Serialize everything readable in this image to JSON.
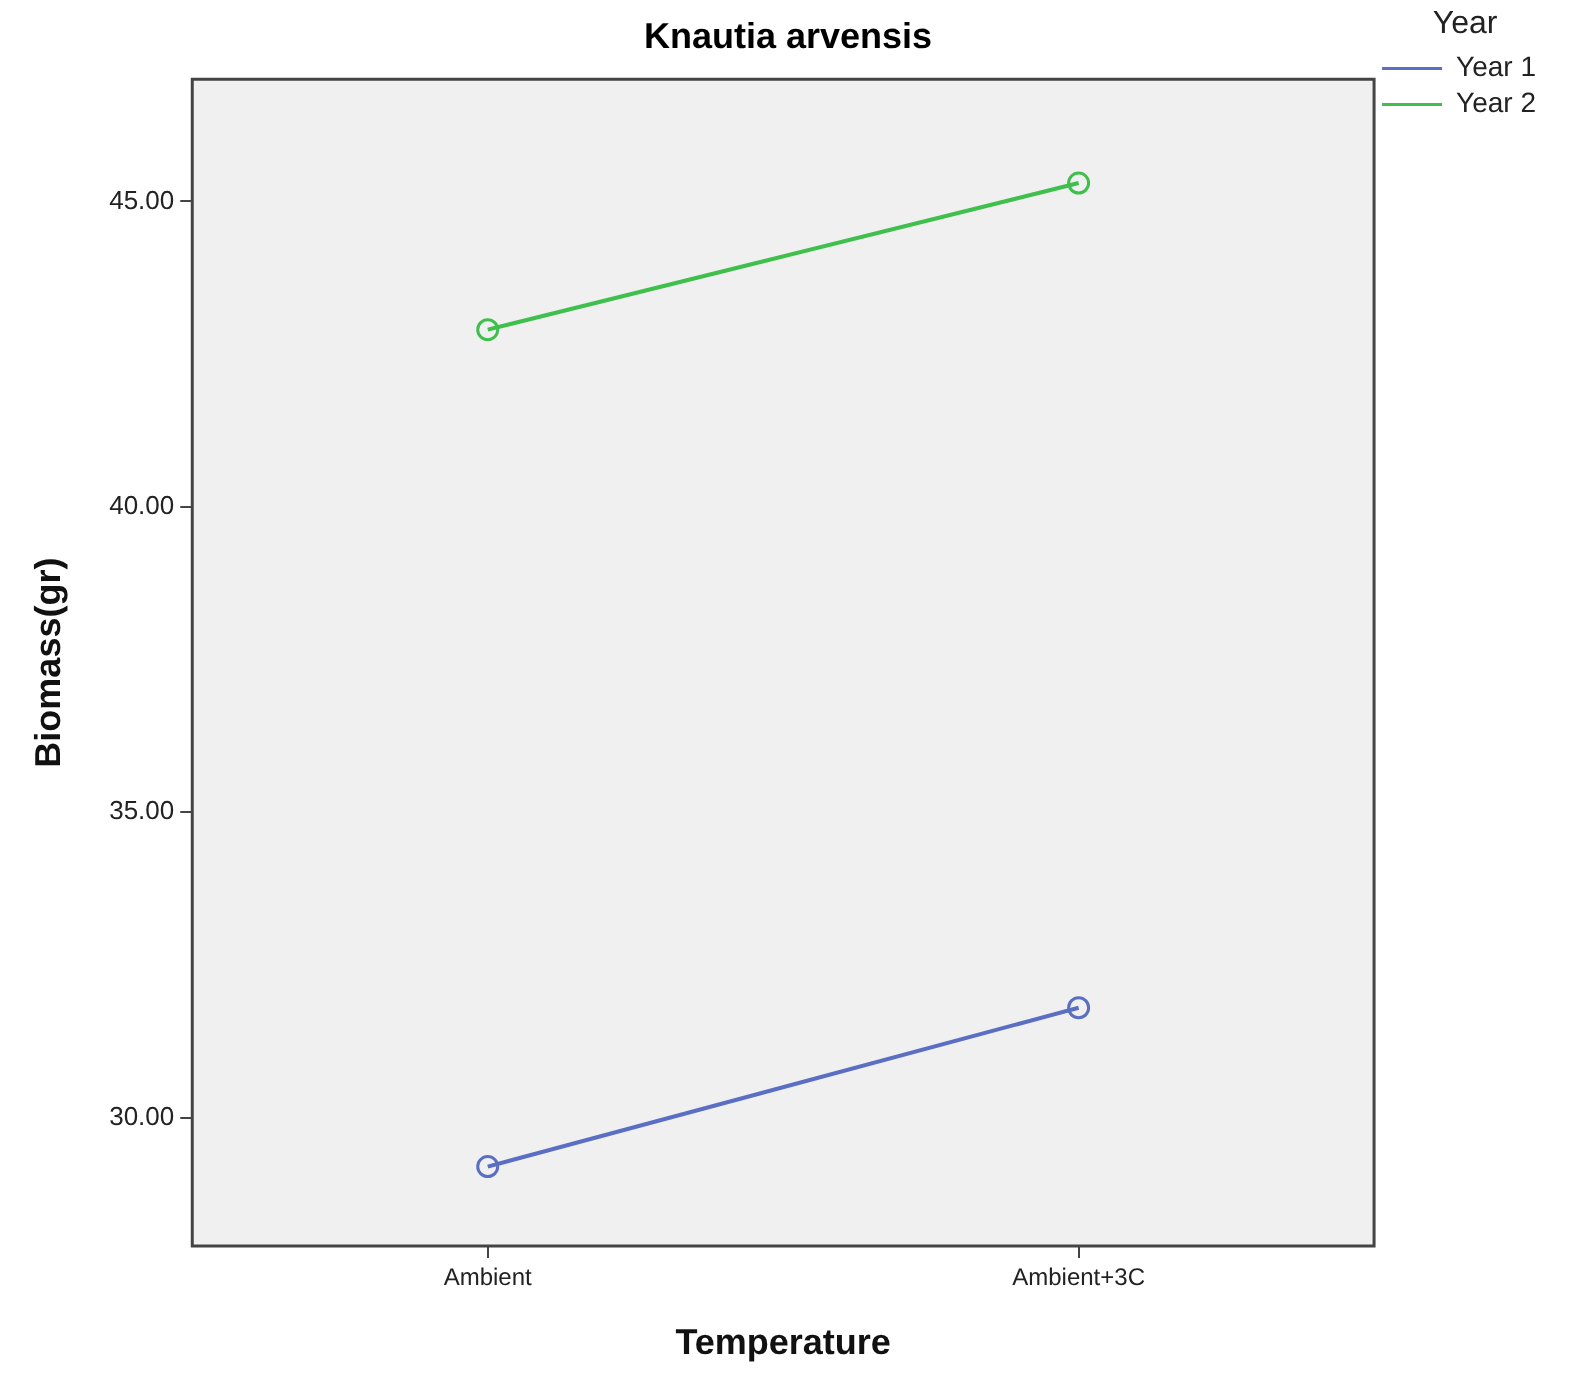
{
  "chart_data": {
    "type": "line",
    "title": "Knautia arvensis",
    "xlabel": "Temperature",
    "ylabel": "Biomass(gr)",
    "legend_title": "Year",
    "categories": [
      "Ambient",
      "Ambient+3C"
    ],
    "series": [
      {
        "name": "Year 1",
        "color": "#5a6ec4",
        "values": [
          29.2,
          31.8
        ]
      },
      {
        "name": "Year 2",
        "color": "#3fbf4c",
        "values": [
          42.9,
          45.3
        ]
      }
    ],
    "ylim": [
      27.9,
      47.0
    ],
    "yticks": [
      {
        "value": 30,
        "label": "30.00"
      },
      {
        "value": 35,
        "label": "35.00"
      },
      {
        "value": 40,
        "label": "40.00"
      },
      {
        "value": 45,
        "label": "45.00"
      }
    ],
    "grid": false,
    "legend": "top right",
    "marker": "circle",
    "line_style": "solid"
  }
}
